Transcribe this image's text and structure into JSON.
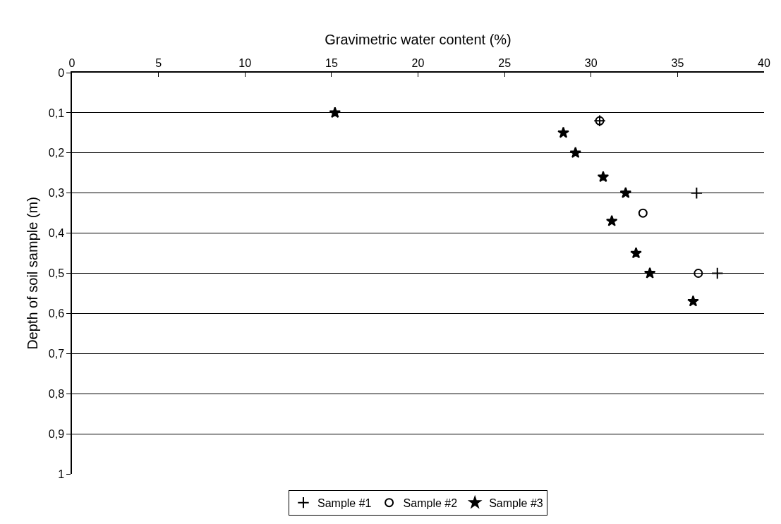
{
  "chart_data": {
    "type": "scatter",
    "xlabel": "Gravimetric water content (%)",
    "ylabel": "Depth of soil sample (m)",
    "xlim": [
      0,
      40
    ],
    "xticks": [
      0,
      5,
      10,
      15,
      20,
      25,
      30,
      35,
      40
    ],
    "ylim": [
      1,
      0
    ],
    "yticks": [
      0,
      {
        "value": 0.1,
        "label": "0,1"
      },
      {
        "value": 0.2,
        "label": "0,2"
      },
      {
        "value": 0.3,
        "label": "0,3"
      },
      {
        "value": 0.4,
        "label": "0,4"
      },
      {
        "value": 0.5,
        "label": "0,5"
      },
      {
        "value": 0.6,
        "label": "0,6"
      },
      {
        "value": 0.7,
        "label": "0,7"
      },
      {
        "value": 0.8,
        "label": "0,8"
      },
      {
        "value": 0.9,
        "label": "0,9"
      },
      1
    ],
    "grid": "y",
    "legend": "bottom",
    "series": [
      {
        "name": "Sample #1",
        "color": "#000000",
        "marker": "cross",
        "x": [
          30.5,
          36.1,
          37.3
        ],
        "values": [
          0.12,
          0.3,
          0.5
        ]
      },
      {
        "name": "Sample #2",
        "color": "#000000",
        "marker": "circle",
        "x": [
          30.5,
          33.0,
          36.2
        ],
        "values": [
          0.12,
          0.35,
          0.5
        ]
      },
      {
        "name": "Sample #3",
        "color": "#000000",
        "marker": "star",
        "x": [
          15.2,
          28.4,
          29.1,
          30.7,
          32.0,
          31.2,
          32.6,
          33.4,
          35.9
        ],
        "values": [
          0.1,
          0.15,
          0.2,
          0.26,
          0.3,
          0.37,
          0.45,
          0.5,
          0.57
        ]
      }
    ]
  }
}
